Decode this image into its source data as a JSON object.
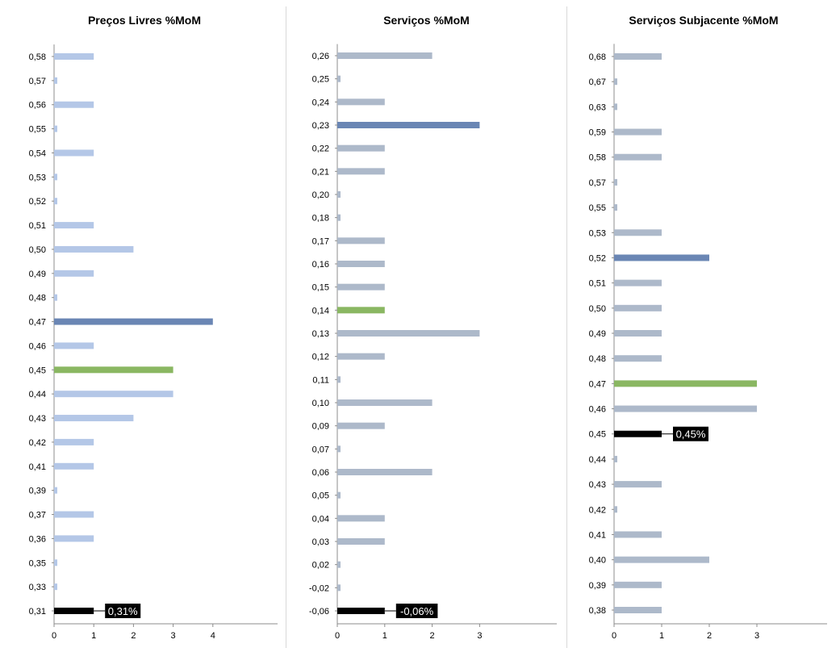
{
  "colors": {
    "bar_light_blue": "#b4c7e7",
    "bar_gray_blue": "#adb9ca",
    "bar_dark_blue": "#6a86b4",
    "bar_green": "#8ab762",
    "bar_black": "#000000",
    "axis": "#8c8c8c",
    "divider": "#d9d9d9",
    "label_bg": "#000000",
    "label_text": "#ffffff"
  },
  "chart_data": [
    {
      "type": "bar",
      "orientation": "horizontal",
      "title": "Preços Livres %MoM",
      "xlim": [
        0,
        5
      ],
      "xticks": [
        "0",
        "1",
        "2",
        "3",
        "4"
      ],
      "categories": [
        "0,58",
        "0,57",
        "0,56",
        "0,55",
        "0,54",
        "0,53",
        "0,52",
        "0,51",
        "0,50",
        "0,49",
        "0,48",
        "0,47",
        "0,46",
        "0,45",
        "0,44",
        "0,43",
        "0,42",
        "0,41",
        "0,39",
        "0,37",
        "0,36",
        "0,35",
        "0,33",
        "0,31"
      ],
      "values": [
        1,
        0,
        1,
        0,
        1,
        0,
        0,
        1,
        2,
        1,
        0,
        4,
        1,
        3,
        3,
        2,
        1,
        1,
        0,
        1,
        1,
        0,
        0,
        1
      ],
      "bar_colors": [
        "bar_light_blue",
        "bar_light_blue",
        "bar_light_blue",
        "bar_light_blue",
        "bar_light_blue",
        "bar_light_blue",
        "bar_light_blue",
        "bar_light_blue",
        "bar_light_blue",
        "bar_light_blue",
        "bar_light_blue",
        "bar_dark_blue",
        "bar_light_blue",
        "bar_green",
        "bar_light_blue",
        "bar_light_blue",
        "bar_light_blue",
        "bar_light_blue",
        "bar_light_blue",
        "bar_light_blue",
        "bar_light_blue",
        "bar_light_blue",
        "bar_light_blue",
        "bar_black"
      ],
      "annotation": {
        "category": "0,31",
        "text": "0,31%"
      }
    },
    {
      "type": "bar",
      "orientation": "horizontal",
      "title": "Serviços %MoM",
      "xlim": [
        0,
        4.7
      ],
      "xticks": [
        "0",
        "1",
        "2",
        "3"
      ],
      "categories": [
        "0,26",
        "0,25",
        "0,24",
        "0,23",
        "0,22",
        "0,21",
        "0,20",
        "0,18",
        "0,17",
        "0,16",
        "0,15",
        "0,14",
        "0,13",
        "0,12",
        "0,11",
        "0,10",
        "0,09",
        "0,07",
        "0,06",
        "0,05",
        "0,04",
        "0,03",
        "0,02",
        "-0,02",
        "-0,06"
      ],
      "values": [
        2,
        0,
        1,
        3,
        1,
        1,
        0,
        0,
        1,
        1,
        1,
        1,
        3,
        1,
        0,
        2,
        1,
        0,
        2,
        0,
        1,
        1,
        0,
        0,
        1
      ],
      "bar_colors": [
        "bar_gray_blue",
        "bar_gray_blue",
        "bar_gray_blue",
        "bar_dark_blue",
        "bar_gray_blue",
        "bar_gray_blue",
        "bar_gray_blue",
        "bar_gray_blue",
        "bar_gray_blue",
        "bar_gray_blue",
        "bar_gray_blue",
        "bar_green",
        "bar_gray_blue",
        "bar_gray_blue",
        "bar_gray_blue",
        "bar_gray_blue",
        "bar_gray_blue",
        "bar_gray_blue",
        "bar_gray_blue",
        "bar_gray_blue",
        "bar_gray_blue",
        "bar_gray_blue",
        "bar_gray_blue",
        "bar_gray_blue",
        "bar_black"
      ],
      "annotation": {
        "category": "-0,06",
        "text": "-0,06%"
      }
    },
    {
      "type": "bar",
      "orientation": "horizontal",
      "title": "Serviços Subjacente %MoM",
      "xlim": [
        0,
        4.5
      ],
      "xticks": [
        "0",
        "1",
        "2",
        "3"
      ],
      "categories": [
        "0,68",
        "0,67",
        "0,63",
        "0,59",
        "0,58",
        "0,57",
        "0,55",
        "0,53",
        "0,52",
        "0,51",
        "0,50",
        "0,49",
        "0,48",
        "0,47",
        "0,46",
        "0,45",
        "0,44",
        "0,43",
        "0,42",
        "0,41",
        "0,40",
        "0,39",
        "0,38"
      ],
      "values": [
        1,
        0,
        0,
        1,
        1,
        0,
        0,
        1,
        2,
        1,
        1,
        1,
        1,
        3,
        3,
        1,
        0,
        1,
        0,
        1,
        2,
        1,
        1
      ],
      "bar_colors": [
        "bar_gray_blue",
        "bar_gray_blue",
        "bar_gray_blue",
        "bar_gray_blue",
        "bar_gray_blue",
        "bar_gray_blue",
        "bar_gray_blue",
        "bar_gray_blue",
        "bar_dark_blue",
        "bar_gray_blue",
        "bar_gray_blue",
        "bar_gray_blue",
        "bar_gray_blue",
        "bar_green",
        "bar_gray_blue",
        "bar_black",
        "bar_gray_blue",
        "bar_gray_blue",
        "bar_gray_blue",
        "bar_gray_blue",
        "bar_gray_blue",
        "bar_gray_blue",
        "bar_gray_blue"
      ],
      "annotation": {
        "category": "0,45",
        "text": "0,45%"
      }
    }
  ]
}
